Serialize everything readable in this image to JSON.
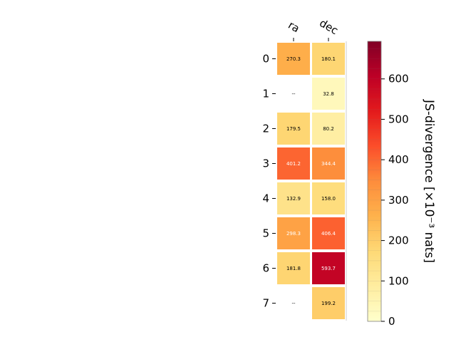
{
  "chart_data": {
    "type": "heatmap",
    "columns": [
      "ra",
      "dec"
    ],
    "rows": [
      "0",
      "1",
      "2",
      "3",
      "4",
      "5",
      "6",
      "7"
    ],
    "values": [
      [
        270.3,
        180.1
      ],
      [
        null,
        32.8
      ],
      [
        179.5,
        80.2
      ],
      [
        401.2,
        344.4
      ],
      [
        132.9,
        158.0
      ],
      [
        298.3,
        406.4
      ],
      [
        181.8,
        593.7
      ],
      [
        null,
        199.2
      ]
    ],
    "cell_labels": [
      [
        "270.3",
        "180.1"
      ],
      [
        "--",
        "32.8"
      ],
      [
        "179.5",
        "80.2"
      ],
      [
        "401.2",
        "344.4"
      ],
      [
        "132.9",
        "158.0"
      ],
      [
        "298.3",
        "406.4"
      ],
      [
        "181.8",
        "593.7"
      ],
      [
        "--",
        "199.2"
      ]
    ],
    "colorbar": {
      "label": "JS-divergence [×10⁻³ nats]",
      "range": [
        0,
        693
      ],
      "ticks": [
        0,
        100,
        200,
        300,
        400,
        500,
        600
      ],
      "colormap": "YlOrRd"
    },
    "text_colors": {
      "dark": "#000000",
      "light": "#ffffff"
    },
    "light_text_threshold": 290
  }
}
